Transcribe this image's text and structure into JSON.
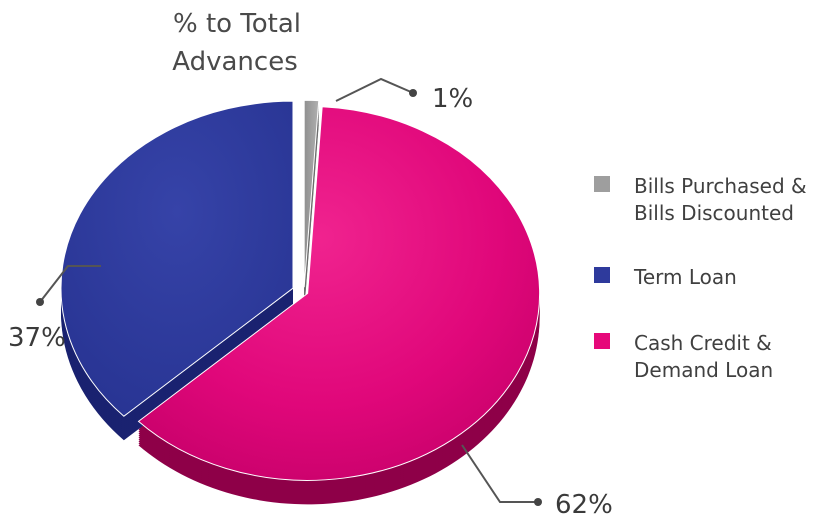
{
  "chart_data": {
    "type": "pie",
    "title": [
      "% to Total",
      "Advances"
    ],
    "slices": [
      {
        "label": [
          "Bills Purchased &",
          "Bills Discounted"
        ],
        "value": 1,
        "display": "1%",
        "color": "#9e9e9e"
      },
      {
        "label": [
          "Term Loan"
        ],
        "value": 37,
        "display": "37%",
        "color": "#2e3a9c"
      },
      {
        "label": [
          "Cash Credit &",
          "Demand Loan"
        ],
        "value": 62,
        "display": "62%",
        "color": "#e6087a"
      }
    ],
    "legend_position": "right",
    "style": "3d-exploded"
  }
}
